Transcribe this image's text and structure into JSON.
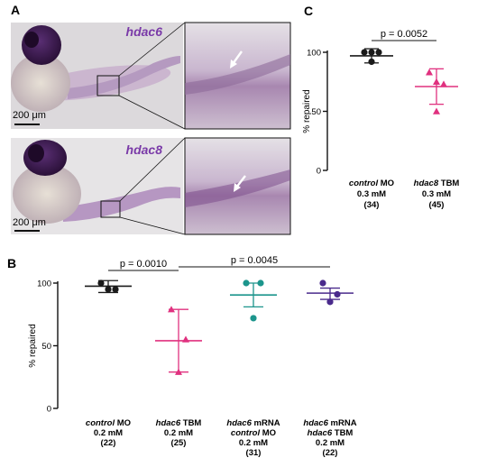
{
  "panels": {
    "A": {
      "letter": "A",
      "images": [
        {
          "gene": "hdac6",
          "scale_bar": "200 μm"
        },
        {
          "gene": "hdac8",
          "scale_bar": "200 μm"
        }
      ]
    },
    "B": {
      "letter": "B"
    },
    "C": {
      "letter": "C"
    }
  },
  "colors": {
    "black": "#1a1a1a",
    "magenta": "#e0317f",
    "teal": "#1c958c",
    "purple": "#4a2a8c",
    "stain": "#6b3f86"
  },
  "chart_data": [
    {
      "panel": "B",
      "type": "scatter",
      "ylabel": "% repaired",
      "ylim": [
        0,
        100
      ],
      "yticks": [
        0,
        50,
        100
      ],
      "categories": [
        {
          "lines": [
            {
              "italic": "control",
              "rest": " MO"
            },
            {
              "rest": "0.2 mM"
            },
            {
              "rest": "(22)"
            }
          ],
          "color": "black",
          "marker": "circle",
          "points": [
            100,
            95,
            95
          ],
          "mean": 97.5,
          "err": [
            92.5,
            102
          ]
        },
        {
          "lines": [
            {
              "italic": "hdac6",
              "rest": " TBM"
            },
            {
              "rest": "0.2 mM"
            },
            {
              "rest": "(25)"
            }
          ],
          "color": "magenta",
          "marker": "triangle",
          "points": [
            79,
            55,
            29
          ],
          "mean": 54,
          "err": [
            29,
            79
          ]
        },
        {
          "lines": [
            {
              "italic": "hdac6",
              "rest": " mRNA"
            },
            {
              "italic": "control",
              "rest": " MO"
            },
            {
              "rest": "0.2 mM"
            },
            {
              "rest": "(31)"
            }
          ],
          "color": "teal",
          "marker": "circle",
          "points": [
            100,
            100,
            72
          ],
          "mean": 90.5,
          "err": [
            81,
            100
          ]
        },
        {
          "lines": [
            {
              "italic": "hdac6",
              "rest": " mRNA"
            },
            {
              "italic": "hdac6",
              "rest": " TBM"
            },
            {
              "rest": "0.2 mM"
            },
            {
              "rest": "(22)"
            }
          ],
          "color": "purple",
          "marker": "circle",
          "points": [
            100,
            91,
            85
          ],
          "mean": 92,
          "err": [
            87,
            96
          ]
        }
      ],
      "comparisons": [
        {
          "between": [
            0,
            1
          ],
          "label": "p = 0.0010"
        },
        {
          "between": [
            1,
            3
          ],
          "label": "p = 0.0045"
        }
      ]
    },
    {
      "panel": "C",
      "type": "scatter",
      "ylabel": "% repaired",
      "ylim": [
        0,
        100
      ],
      "yticks": [
        0,
        50,
        100
      ],
      "categories": [
        {
          "lines": [
            {
              "italic": "control",
              "rest": " MO"
            },
            {
              "rest": "0.3 mM"
            },
            {
              "rest": "(34)"
            }
          ],
          "color": "black",
          "marker": "circle",
          "points": [
            100,
            100,
            100,
            92
          ],
          "mean": 97,
          "err": [
            91,
            103
          ]
        },
        {
          "lines": [
            {
              "italic": "hdac8",
              "rest": " TBM"
            },
            {
              "rest": "0.3 mM"
            },
            {
              "rest": "(45)"
            }
          ],
          "color": "magenta",
          "marker": "triangle",
          "points": [
            83,
            75,
            73,
            50
          ],
          "mean": 71,
          "err": [
            56,
            86
          ]
        }
      ],
      "comparisons": [
        {
          "between": [
            0,
            1
          ],
          "label": "p = 0.0052"
        }
      ]
    }
  ]
}
